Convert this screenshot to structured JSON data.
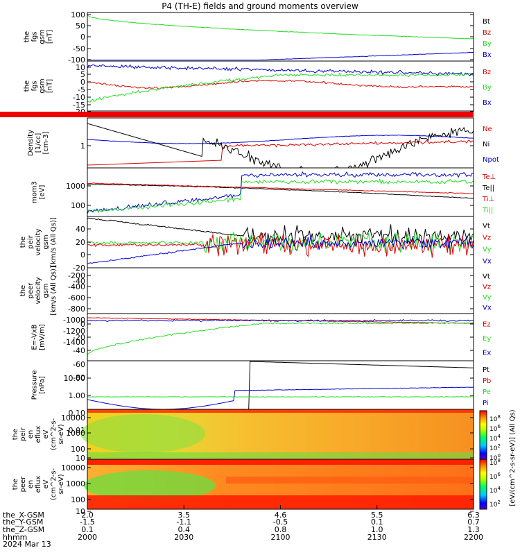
{
  "title": "P4 (TH-E) fields and ground moments overview",
  "colors": {
    "black": "#000000",
    "red": "#dd0000",
    "green": "#22dd22",
    "blue": "#0000cc"
  },
  "chart_data": [
    {
      "type": "line",
      "ylabel": [
        "the",
        "fgs",
        "gsm",
        "[nT]"
      ],
      "yticks": [
        "100",
        "50",
        "0",
        "-50",
        "-100"
      ],
      "ylim": [
        -110,
        110
      ],
      "legend": [
        {
          "name": "Bt",
          "color": "black"
        },
        {
          "name": "Bz",
          "color": "red"
        },
        {
          "name": "By",
          "color": "green"
        },
        {
          "name": "Bx",
          "color": "blue"
        }
      ]
    },
    {
      "type": "line",
      "ylabel": [
        "the",
        "fgs",
        "gsm",
        "[nT]"
      ],
      "yticks": [
        "10",
        "5",
        "0",
        "-5",
        "-10",
        "-15",
        "-20"
      ],
      "ylim": [
        -25,
        12
      ],
      "legend": [
        {
          "name": "Bz",
          "color": "red"
        },
        {
          "name": "By",
          "color": "green"
        },
        {
          "name": "Bx",
          "color": "blue"
        }
      ]
    },
    {
      "type": "line",
      "ylabel": [
        "Density",
        "[1/cc]",
        "[cm-3]"
      ],
      "yticks": [
        "1"
      ],
      "yscale": "log",
      "legend": [
        {
          "name": "Ne",
          "color": "red"
        },
        {
          "name": "Ni",
          "color": "black"
        },
        {
          "name": "Npot",
          "color": "blue"
        }
      ]
    },
    {
      "type": "line",
      "ylabel": [
        "mom3",
        "[eV]"
      ],
      "yticks": [
        "1000",
        "100"
      ],
      "yscale": "log",
      "legend": [
        {
          "name": "Te⊥",
          "color": "red"
        },
        {
          "name": "Te||",
          "color": "black"
        },
        {
          "name": "Ti⊥",
          "color": "red"
        },
        {
          "name": "Ti||",
          "color": "green"
        }
      ]
    },
    {
      "type": "line",
      "ylabel": [
        "the",
        "peir",
        "velocity",
        "gsm",
        "[km/s (All Qs)]"
      ],
      "yticks": [
        "40",
        "20",
        "0",
        "-20",
        "-40"
      ],
      "ylim": [
        -45,
        45
      ],
      "legend": [
        {
          "name": "Vt",
          "color": "black"
        },
        {
          "name": "Vz",
          "color": "red"
        },
        {
          "name": "Vy",
          "color": "green"
        },
        {
          "name": "Vx",
          "color": "blue"
        }
      ]
    },
    {
      "type": "line",
      "ylabel": [
        "the",
        "peer",
        "velocity",
        "gsm",
        "[km/s (All Qs)]"
      ],
      "yticks": [
        "-200",
        "-400",
        "-600",
        "-800",
        "-1000",
        "-1200",
        "-1400"
      ],
      "ylim": [
        -1450,
        0
      ],
      "legend": [
        {
          "name": "Vt",
          "color": "black"
        },
        {
          "name": "Vz",
          "color": "red"
        },
        {
          "name": "Vy",
          "color": "green"
        },
        {
          "name": "Vx",
          "color": "blue"
        }
      ]
    },
    {
      "type": "line",
      "ylabel": [
        "E=-VxB",
        "[mV/m]"
      ],
      "yticks": [
        "0",
        "-20",
        "-40",
        "-60",
        "-80"
      ],
      "ylim": [
        -85,
        15
      ],
      "legend": [
        {
          "name": "Ez",
          "color": "red"
        },
        {
          "name": "Ey",
          "color": "green"
        },
        {
          "name": "Ex",
          "color": "blue"
        }
      ]
    },
    {
      "type": "line",
      "ylabel": [
        "Pressure",
        "[nPa]"
      ],
      "yticks": [
        "10.00",
        "1.00",
        "0.10",
        "0.01"
      ],
      "yscale": "log",
      "legend": [
        {
          "name": "Pt",
          "color": "black"
        },
        {
          "name": "Pb",
          "color": "red"
        },
        {
          "name": "Pe",
          "color": "green"
        },
        {
          "name": "Pi",
          "color": "blue"
        }
      ]
    },
    {
      "type": "heatmap",
      "ylabel": [
        "the",
        "peir",
        "en",
        "eflux",
        "eV",
        "(cm^2-s-",
        "sr-eV)"
      ],
      "yticks": [
        "10000",
        "1000",
        "100",
        "10"
      ],
      "yscale": "log"
    },
    {
      "type": "heatmap",
      "ylabel": [
        "the",
        "peer",
        "en",
        "eflux",
        "eV",
        "(cm^2-s-",
        "sr-eV)"
      ],
      "yticks": [
        "10000",
        "1000",
        "100",
        "10"
      ],
      "yscale": "log"
    }
  ],
  "colorbar": {
    "label": "[eV/(cm^2-s-sr-eV)] (All Qs)",
    "top_ticks": [
      "10^8",
      "10^6",
      "10^4",
      "10^2",
      "10^0"
    ],
    "bottom_ticks": [
      "10^8",
      "10^6",
      "10^4",
      "10^2"
    ]
  },
  "xaxis": {
    "tick_positions": [
      2000,
      2030,
      2100,
      2130,
      2200
    ],
    "row_labels": [
      "the_X-GSM",
      "the_Y-GSM",
      "the_Z-GSM",
      "hhmm",
      "2024 Mar 13"
    ],
    "rows": [
      [
        "2.0",
        "3.5",
        "4.6",
        "5.5",
        "6.3"
      ],
      [
        "-1.5",
        "-1.1",
        "-0.5",
        "0.1",
        "0.7"
      ],
      [
        "0.1",
        "0.4",
        "0.8",
        "1.0",
        "1.3"
      ],
      [
        "2000",
        "2030",
        "2100",
        "2130",
        "2200"
      ]
    ]
  }
}
